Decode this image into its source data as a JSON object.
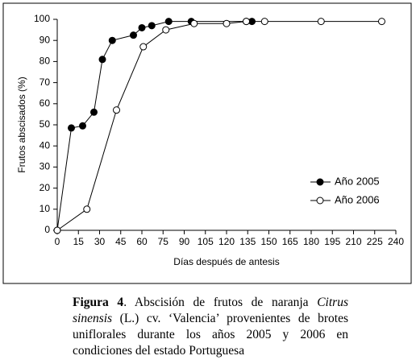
{
  "chart_data": {
    "type": "line",
    "xlabel": "Días después de antesis",
    "ylabel": "Frutos abscisados (%)",
    "xlim": [
      0,
      240
    ],
    "xticks": [
      0,
      15,
      30,
      45,
      60,
      75,
      90,
      105,
      120,
      135,
      150,
      165,
      180,
      195,
      210,
      225,
      240
    ],
    "ylim": [
      0,
      100
    ],
    "yticks": [
      0,
      10,
      20,
      30,
      40,
      50,
      60,
      70,
      80,
      90,
      100
    ],
    "legend": "right",
    "grid": false,
    "series": [
      {
        "name": "Año 2005",
        "color": "#000000",
        "marker": "filled",
        "x": [
          0,
          10,
          18,
          26,
          32,
          39,
          54,
          60,
          67,
          79,
          95,
          134,
          138
        ],
        "values": [
          0,
          48.5,
          49.5,
          56,
          81,
          90,
          92.5,
          96,
          97,
          99,
          99,
          99,
          99
        ]
      },
      {
        "name": "Año 2006",
        "color": "#000000",
        "marker": "open",
        "x": [
          0,
          21,
          42,
          61,
          77,
          97,
          120,
          134,
          147,
          187,
          230
        ],
        "values": [
          0,
          10,
          57,
          87,
          95,
          98,
          98,
          99,
          99,
          99,
          99
        ]
      }
    ]
  },
  "caption": {
    "label": "Figura 4",
    "text1": ". Abscisión de frutos de naranja ",
    "species": "Citrus sinensis",
    "text2": " (L.) cv. ‘Valencia’ provenientes de brotes uniflorales durante los años 2005 y 2006 en condiciones del estado  Portuguesa"
  }
}
